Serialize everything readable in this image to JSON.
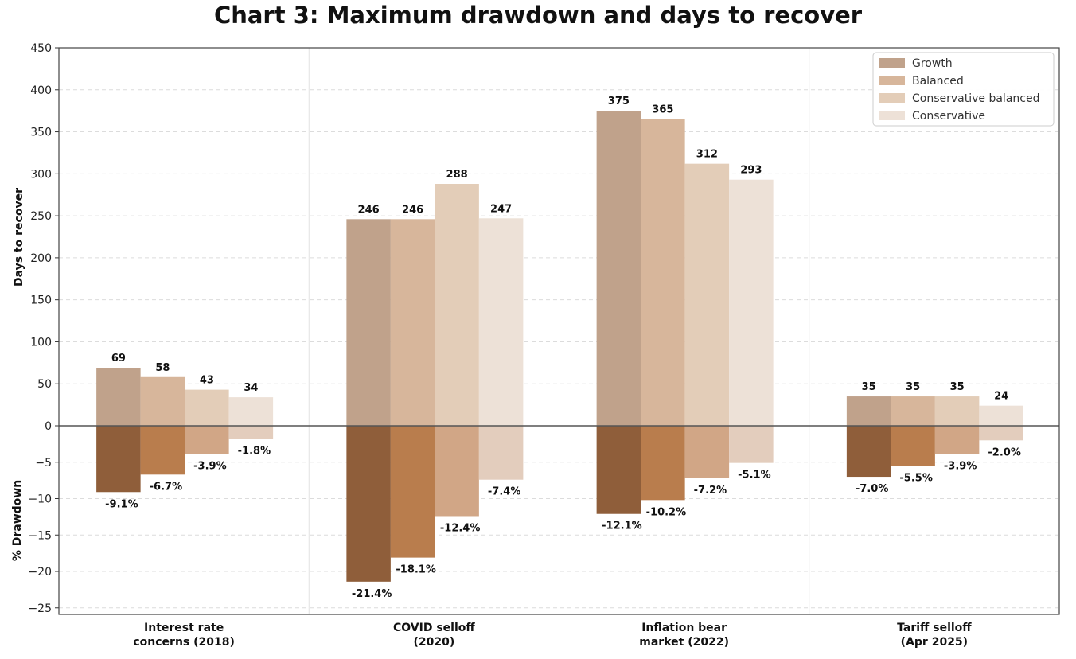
{
  "title": "Chart 3: Maximum drawdown and days to recover",
  "chart_data": {
    "type": "bar",
    "title": "Chart 3: Maximum drawdown and days to recover",
    "categories": [
      [
        "Interest rate",
        "concerns (2018)"
      ],
      [
        "COVID selloff",
        "(2020)"
      ],
      [
        "Inflation bear",
        "market (2022)"
      ],
      [
        "Tariff selloff",
        "(Apr 2025)"
      ]
    ],
    "series": [
      {
        "name": "Growth",
        "days": [
          69,
          246,
          375,
          35
        ],
        "drawdown": [
          -9.1,
          -21.4,
          -12.1,
          -7.0
        ],
        "color": "#c0a28b",
        "drawdown_color": "#8f5e3a"
      },
      {
        "name": "Balanced",
        "days": [
          58,
          246,
          365,
          35
        ],
        "drawdown": [
          -6.7,
          -18.1,
          -10.2,
          -5.5
        ],
        "color": "#d7b69b",
        "drawdown_color": "#b97d4d"
      },
      {
        "name": "Conservative balanced",
        "days": [
          43,
          288,
          312,
          35
        ],
        "drawdown": [
          -3.9,
          -12.4,
          -7.2,
          -3.9
        ],
        "color": "#e3cdb8",
        "drawdown_color": "#d1a686"
      },
      {
        "name": "Conservative",
        "days": [
          34,
          247,
          293,
          24
        ],
        "drawdown": [
          -1.8,
          -7.4,
          -5.1,
          -2.0
        ],
        "color": "#ede1d7",
        "drawdown_color": "#e3cdbd"
      }
    ],
    "top_axis": {
      "label": "Days to recover",
      "range": [
        0,
        450
      ],
      "ticks": [
        "450",
        "400",
        "350",
        "300",
        "250",
        "200",
        "150",
        "100",
        "50",
        "0"
      ]
    },
    "bottom_axis": {
      "label": "% Drawdown",
      "range": [
        -25.9,
        0
      ],
      "ticks": [
        "−5",
        "−10",
        "−15",
        "−20",
        "−25"
      ]
    },
    "grid": true,
    "legend_position": "top-right"
  }
}
